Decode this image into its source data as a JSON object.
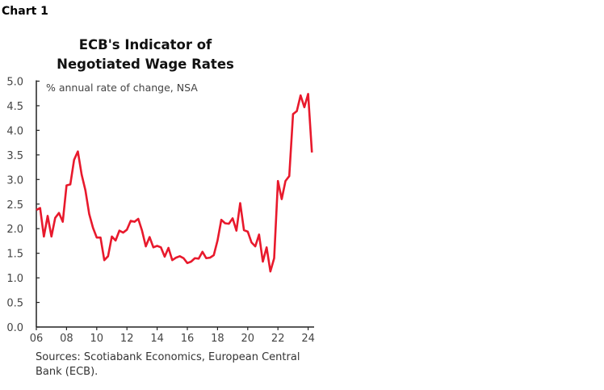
{
  "header": {
    "chart_label": "Chart 1"
  },
  "chart_data": {
    "type": "line",
    "title": "ECB's Indicator of Negotiated Wage Rates",
    "title_lines": [
      "ECB's Indicator of",
      "Negotiated Wage Rates"
    ],
    "subtitle": "% annual rate of change, NSA",
    "xlabel": "",
    "ylabel": "",
    "ylim": [
      0,
      5
    ],
    "xlim": [
      2006,
      2024.4
    ],
    "y_ticks": [
      "0.0",
      "0.5",
      "1.0",
      "1.5",
      "2.0",
      "2.5",
      "3.0",
      "3.5",
      "4.0",
      "4.5",
      "5.0"
    ],
    "x_ticks": [
      "06",
      "08",
      "10",
      "12",
      "14",
      "16",
      "18",
      "20",
      "22",
      "24"
    ],
    "grid": false,
    "line_color": "#e8192c",
    "series": [
      {
        "x_start": 2006,
        "frequency": "quarterly",
        "values": [
          2.38,
          2.42,
          1.84,
          2.26,
          1.84,
          2.22,
          2.32,
          2.14,
          2.88,
          2.9,
          3.4,
          3.57,
          3.1,
          2.78,
          2.3,
          2.02,
          1.82,
          1.82,
          1.36,
          1.44,
          1.84,
          1.76,
          1.96,
          1.92,
          1.98,
          2.16,
          2.14,
          2.2,
          1.96,
          1.64,
          1.83,
          1.62,
          1.65,
          1.62,
          1.43,
          1.61,
          1.36,
          1.41,
          1.44,
          1.4,
          1.3,
          1.33,
          1.4,
          1.39,
          1.53,
          1.4,
          1.41,
          1.46,
          1.76,
          2.18,
          2.11,
          2.1,
          2.21,
          1.96,
          2.52,
          1.97,
          1.94,
          1.72,
          1.64,
          1.88,
          1.33,
          1.62,
          1.13,
          1.4,
          2.97,
          2.6,
          2.97,
          3.07,
          4.33,
          4.39,
          4.71,
          4.47,
          4.74,
          3.55
        ]
      }
    ]
  },
  "footer": {
    "sources": "Sources: Scotiabank Economics, European Central Bank (ECB)."
  }
}
